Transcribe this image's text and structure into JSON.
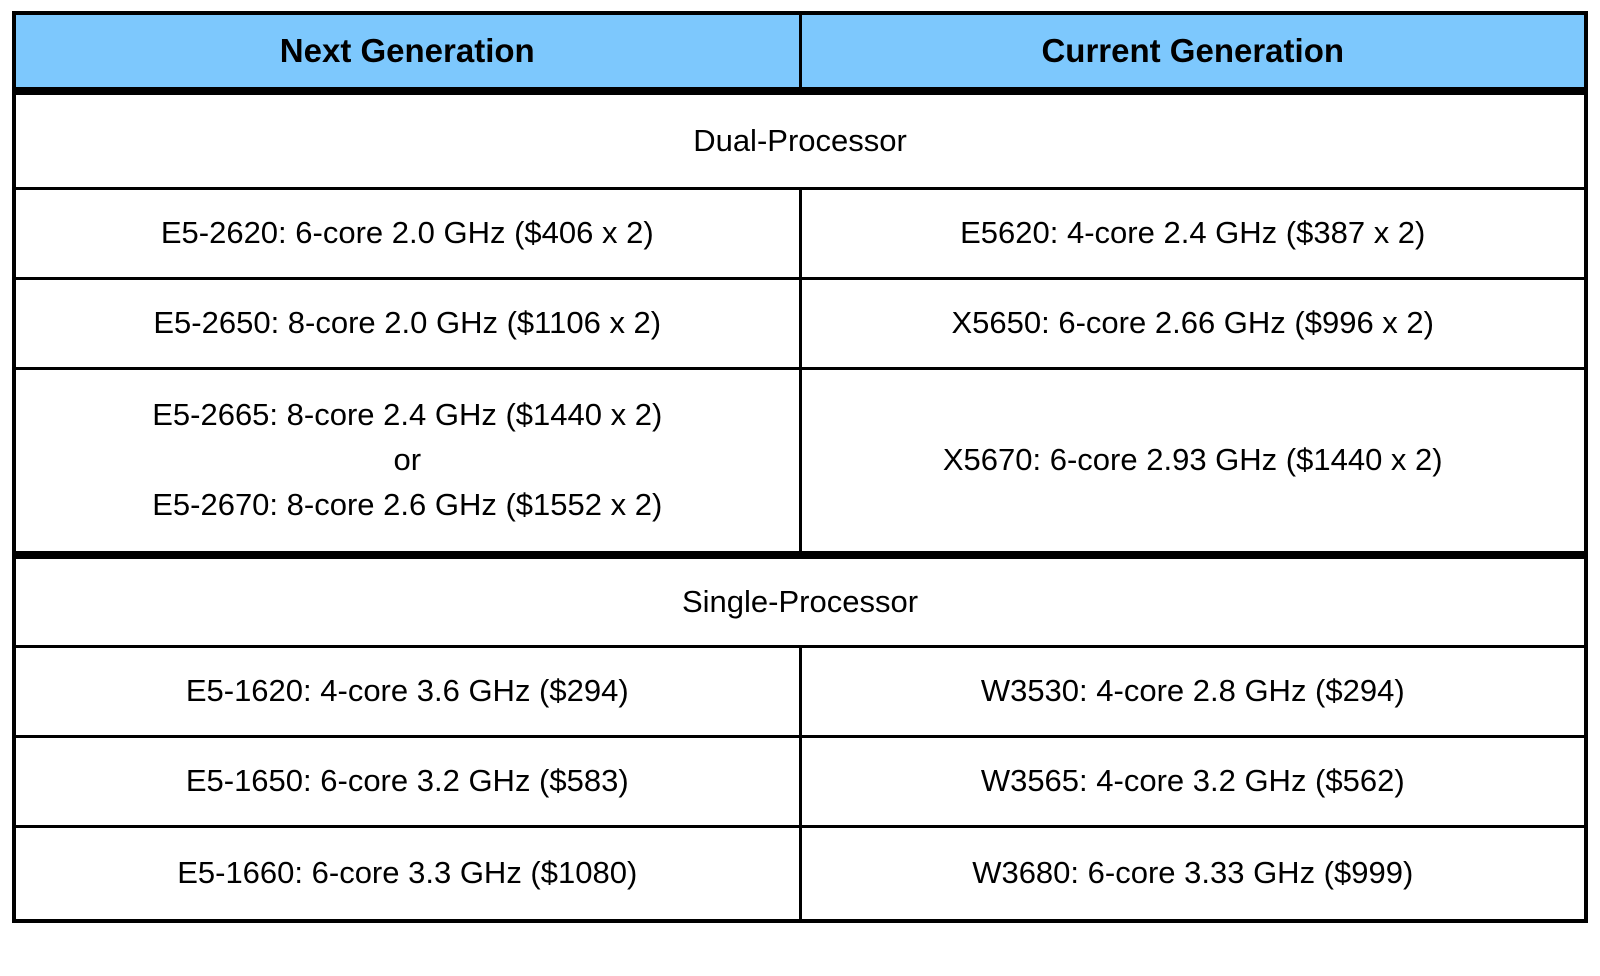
{
  "chart_data": {
    "type": "table",
    "columns": [
      "Next Generation",
      "Current Generation"
    ],
    "header_bg": "#7DC8FD",
    "border_color": "#000000",
    "sections": [
      {
        "title": "Dual-Processor",
        "rows": [
          {
            "next": "E5-2620: 6-core 2.0 GHz ($406 x 2)",
            "current": "E5620: 4-core 2.4 GHz ($387 x 2)"
          },
          {
            "next": "E5-2650: 8-core 2.0 GHz ($1106 x 2)",
            "current": "X5650: 6-core 2.66 GHz ($996 x 2)"
          },
          {
            "next_lines": [
              "E5-2665: 8-core 2.4 GHz ($1440 x 2)",
              "or",
              "E5-2670: 8-core 2.6 GHz ($1552 x 2)"
            ],
            "current": "X5670: 6-core 2.93 GHz ($1440 x 2)"
          }
        ]
      },
      {
        "title": "Single-Processor",
        "rows": [
          {
            "next": "E5-1620: 4-core 3.6 GHz ($294)",
            "current": "W3530: 4-core 2.8 GHz ($294)"
          },
          {
            "next": "E5-1650: 6-core 3.2 GHz ($583)",
            "current": "W3565: 4-core 3.2 GHz ($562)"
          },
          {
            "next": "E5-1660: 6-core 3.3 GHz ($1080)",
            "current": "W3680: 6-core 3.33 GHz ($999)"
          }
        ]
      }
    ]
  }
}
